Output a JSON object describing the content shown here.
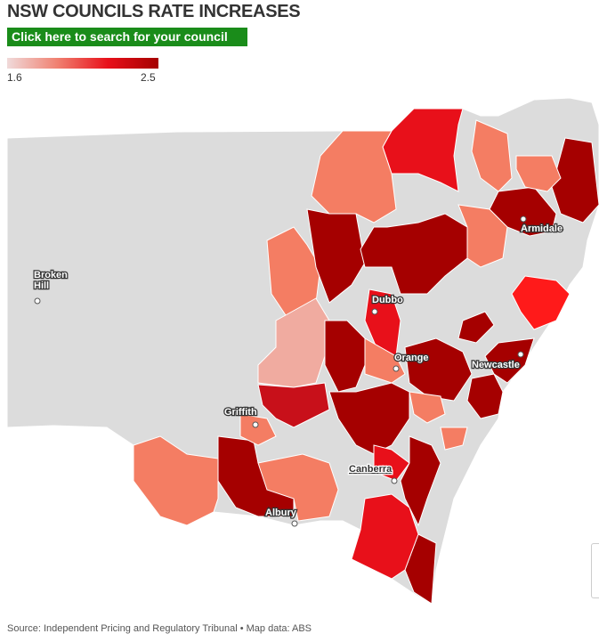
{
  "header": {
    "title": "NSW COUNCILS RATE INCREASES",
    "button": "Click here to search for your council"
  },
  "legend": {
    "min": 1.6,
    "max": 2.5
  },
  "cities": [
    {
      "label": "Broken Hill"
    },
    {
      "label": "Dubbo"
    },
    {
      "label": "Armidale"
    },
    {
      "label": "Orange"
    },
    {
      "label": "Newcastle"
    },
    {
      "label": "Griffith"
    },
    {
      "label": "Canberra"
    },
    {
      "label": "Albury"
    }
  ],
  "source": "Source: Independent Pricing and Regulatory Tribunal • Map data: ABS"
}
